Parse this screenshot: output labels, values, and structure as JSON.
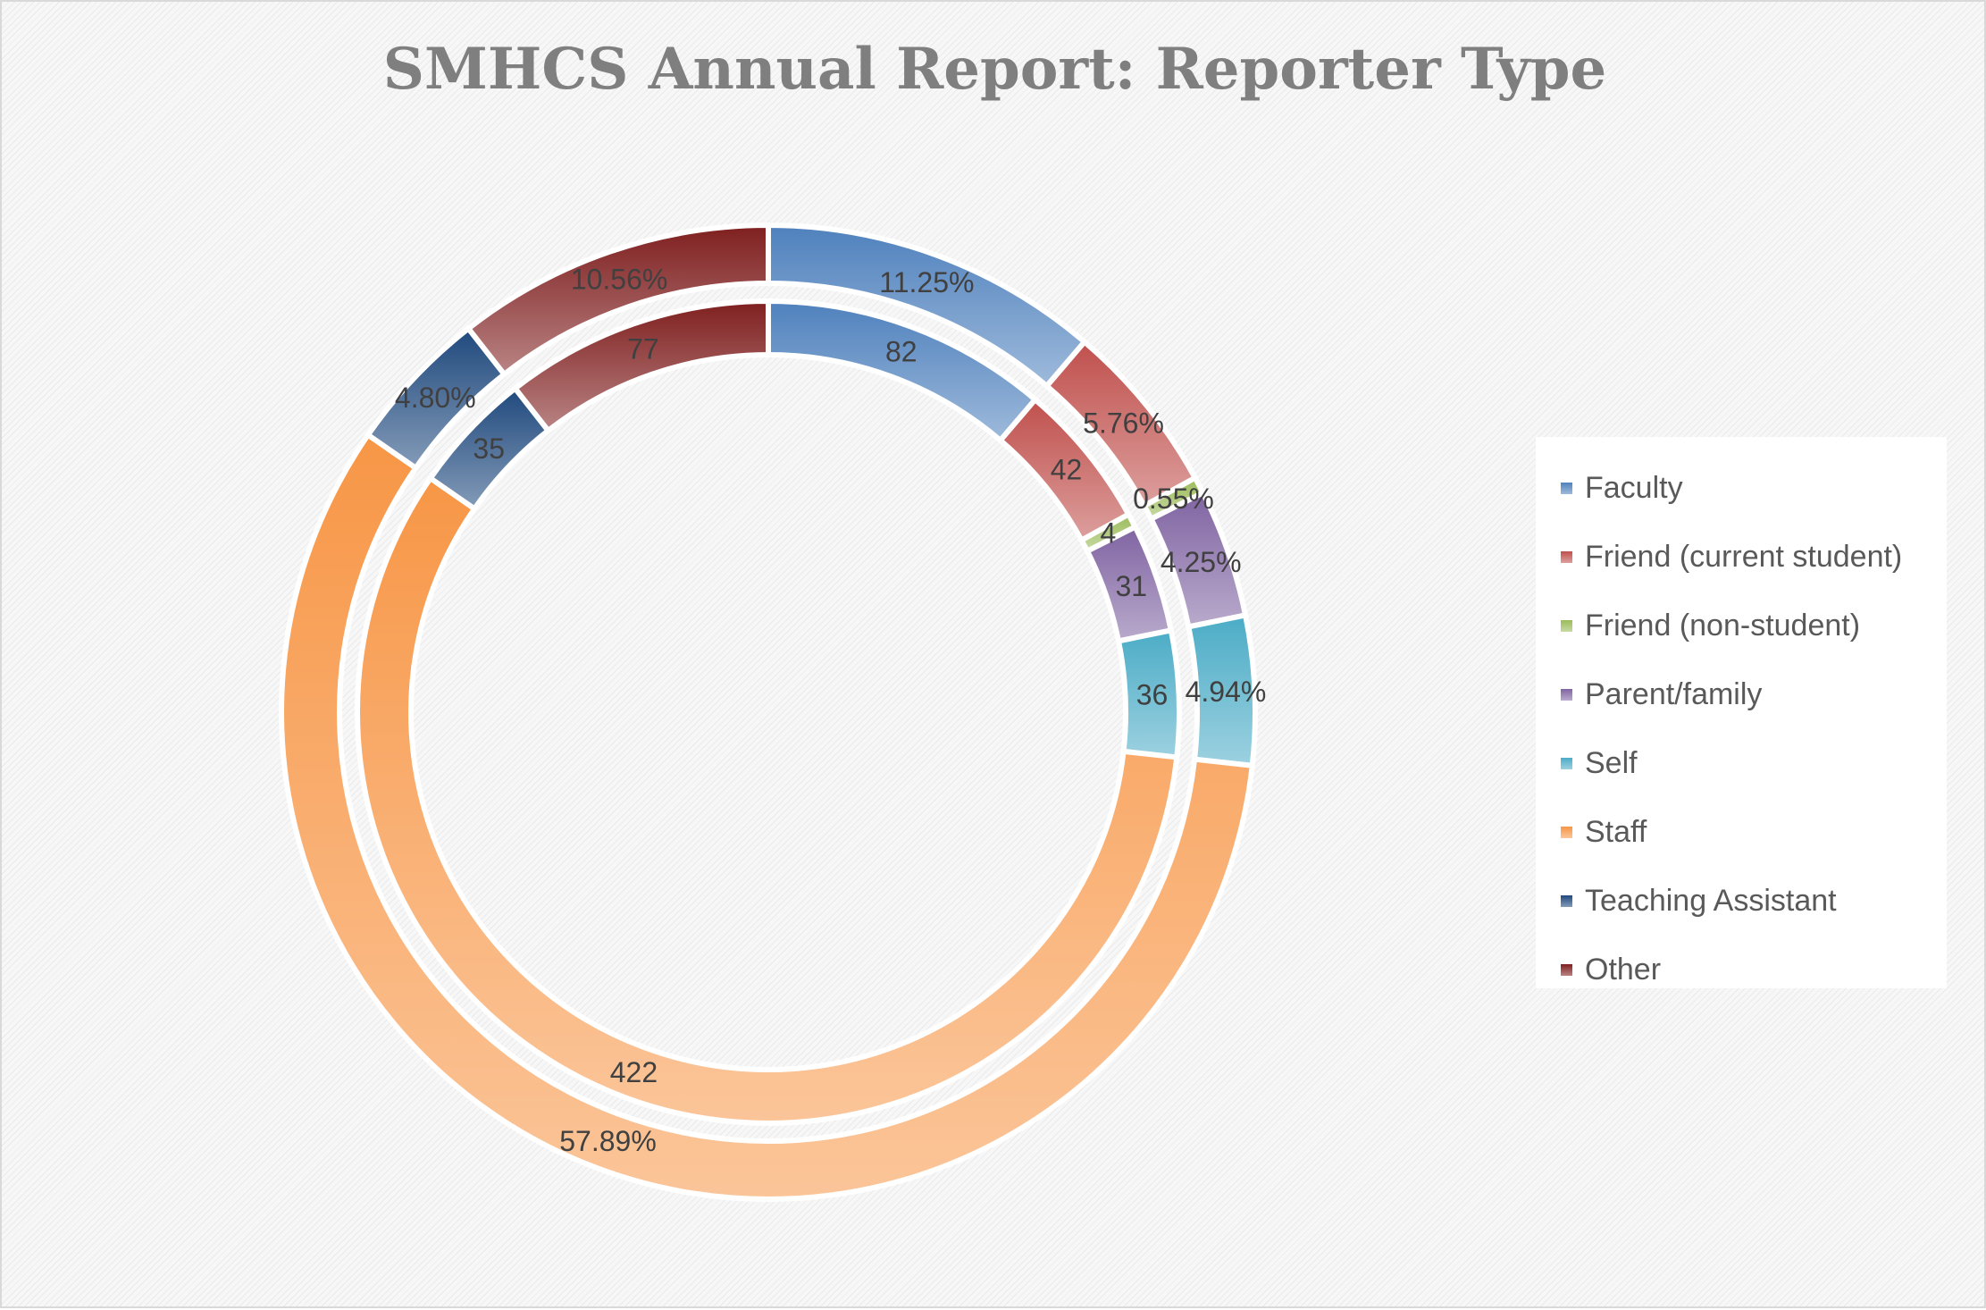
{
  "chart_data": {
    "type": "doughnut",
    "title": "SMHCS Annual Report: Reporter Type",
    "categories": [
      "Faculty",
      "Friend (current student)",
      "Friend (non-student)",
      "Parent/family",
      "Self",
      "Staff",
      "Teaching Assistant",
      "Other"
    ],
    "series": [
      {
        "ring": "inner",
        "values": [
          82,
          42,
          4,
          31,
          36,
          422,
          35,
          77
        ],
        "labels": [
          "82",
          "42",
          "4",
          "31",
          "36",
          "422",
          "35",
          "77"
        ]
      },
      {
        "ring": "outer",
        "values": [
          11.25,
          5.76,
          0.55,
          4.25,
          4.94,
          57.89,
          4.8,
          10.56
        ],
        "labels": [
          "11.25%",
          "5.76%",
          "0.55%",
          "4.25%",
          "4.94%",
          "57.89%",
          "4.80%",
          "10.56%"
        ]
      }
    ],
    "colors": [
      "#4f81bd",
      "#c0504d",
      "#9bbb59",
      "#8064a2",
      "#4bacc6",
      "#f79646",
      "#1f497d",
      "#7f1f1f"
    ],
    "legend_position": "right"
  }
}
